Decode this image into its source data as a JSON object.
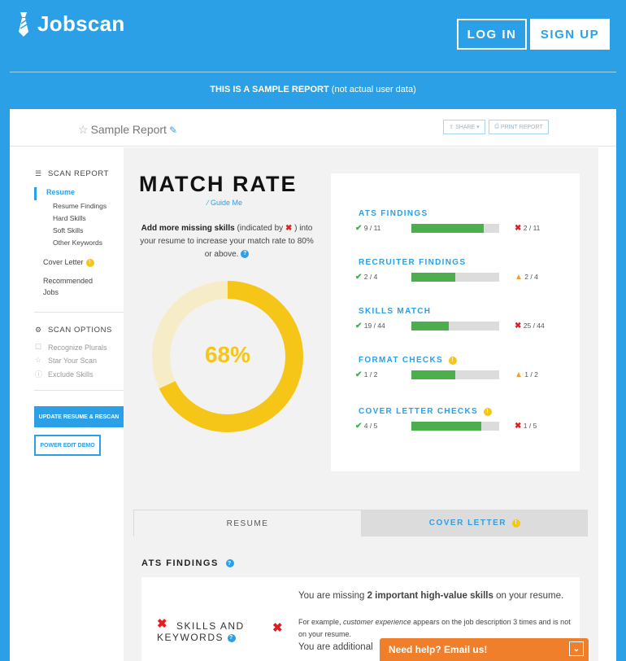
{
  "header": {
    "logo_text": "Jobscan",
    "login_label": "LOG IN",
    "signup_label": "SIGN UP",
    "banner_bold": "THIS IS A SAMPLE REPORT",
    "banner_normal": " (not actual user data)"
  },
  "report": {
    "title": "Sample Report",
    "share_label": "SHARE",
    "print_label": "PRINT REPORT"
  },
  "sidebar": {
    "scan_report_label": "SCAN REPORT",
    "resume_label": "Resume",
    "sub_items": [
      "Resume Findings",
      "Hard Skills",
      "Soft Skills",
      "Other Keywords"
    ],
    "cover_letter_label": "Cover Letter",
    "recommended_line1": "Recommended",
    "recommended_line2": "Jobs",
    "scan_options_label": "SCAN OPTIONS",
    "options": [
      "Recognize Plurals",
      "Star Your Scan",
      "Exclude Skills"
    ],
    "update_button": "UPDATE RESUME & RESCAN",
    "power_edit_button": "POWER EDIT DEMO"
  },
  "match": {
    "title": "MATCH RATE",
    "guide_label": "Guide Me",
    "advice_bold": "Add more missing skills",
    "advice_mid": " (indicated by ",
    "advice_end": " ) into your resume to increase your match rate to 80% or above.",
    "percent_label": "68%",
    "percent_value": 68
  },
  "findings": [
    {
      "label": "ATS FINDINGS",
      "ok": "9 / 11",
      "bad": "2 / 11",
      "bad_type": "x",
      "fraction": 0.82,
      "has_warn": false
    },
    {
      "label": "RECRUITER FINDINGS",
      "ok": "2 / 4",
      "bad": "2 / 4",
      "bad_type": "warn",
      "fraction": 0.5,
      "has_warn": false
    },
    {
      "label": "SKILLS MATCH",
      "ok": "19 / 44",
      "bad": "25 / 44",
      "bad_type": "x",
      "fraction": 0.43,
      "has_warn": false
    },
    {
      "label": "FORMAT CHECKS",
      "ok": "1 / 2",
      "bad": "1 / 2",
      "bad_type": "warn",
      "fraction": 0.5,
      "has_warn": true
    },
    {
      "label": "COVER LETTER CHECKS",
      "ok": "4 / 5",
      "bad": "1 / 5",
      "bad_type": "x",
      "fraction": 0.8,
      "has_warn": true
    }
  ],
  "tabs": {
    "resume": "RESUME",
    "cover_letter": "COVER LETTER"
  },
  "ats": {
    "heading": "ATS FINDINGS",
    "skills_line1": "SKILLS AND",
    "skills_line2": "KEYWORDS",
    "desc_a": "You are missing ",
    "desc_b": "2 important high-value skills",
    "desc_c": " on your resume.",
    "example_a": "For example, ",
    "example_b": "customer experience",
    "example_c": " appears on the job description 3 times and is not on your resume.",
    "desc_more": "You are additional"
  },
  "help": {
    "label": "Need help? Email us!"
  },
  "colors": {
    "brand_blue": "#2ba0e6",
    "match_yellow": "#f5c518",
    "bar_green": "#4cae4c",
    "error_red": "#e02020",
    "warn_orange": "#f0a030",
    "help_orange": "#f07f2c"
  }
}
